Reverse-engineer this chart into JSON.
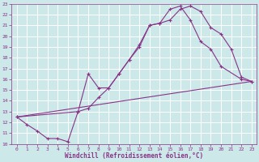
{
  "xlabel": "Windchill (Refroidissement éolien,°C)",
  "xlim": [
    -0.5,
    23.5
  ],
  "ylim": [
    10,
    23
  ],
  "xticks": [
    0,
    1,
    2,
    3,
    4,
    5,
    6,
    7,
    8,
    9,
    10,
    11,
    12,
    13,
    14,
    15,
    16,
    17,
    18,
    19,
    20,
    21,
    22,
    23
  ],
  "yticks": [
    10,
    11,
    12,
    13,
    14,
    15,
    16,
    17,
    18,
    19,
    20,
    21,
    22,
    23
  ],
  "bg_color": "#cce8e8",
  "grid_color": "#ffffff",
  "line_color": "#883388",
  "line1_x": [
    0,
    1,
    2,
    3,
    4,
    5,
    6,
    7,
    8,
    9,
    10,
    11,
    12,
    13,
    14,
    15,
    16,
    17,
    18,
    19,
    20,
    21,
    22,
    23
  ],
  "line1_y": [
    12.5,
    11.8,
    11.2,
    10.5,
    10.5,
    10.2,
    13.0,
    13.3,
    14.3,
    15.2,
    16.5,
    17.8,
    19.2,
    21.0,
    21.2,
    21.5,
    22.5,
    22.8,
    22.3,
    20.8,
    20.2,
    18.8,
    16.2,
    15.8
  ],
  "line2_x": [
    0,
    6,
    7,
    8,
    9,
    10,
    11,
    12,
    13,
    14,
    15,
    16,
    17,
    18,
    19,
    20,
    22,
    23
  ],
  "line2_y": [
    12.5,
    13.0,
    16.5,
    15.2,
    15.2,
    16.5,
    17.8,
    19.0,
    21.0,
    21.2,
    22.5,
    22.8,
    21.5,
    19.5,
    18.8,
    17.2,
    16.0,
    15.8
  ],
  "line3_x": [
    0,
    23
  ],
  "line3_y": [
    12.5,
    15.8
  ]
}
